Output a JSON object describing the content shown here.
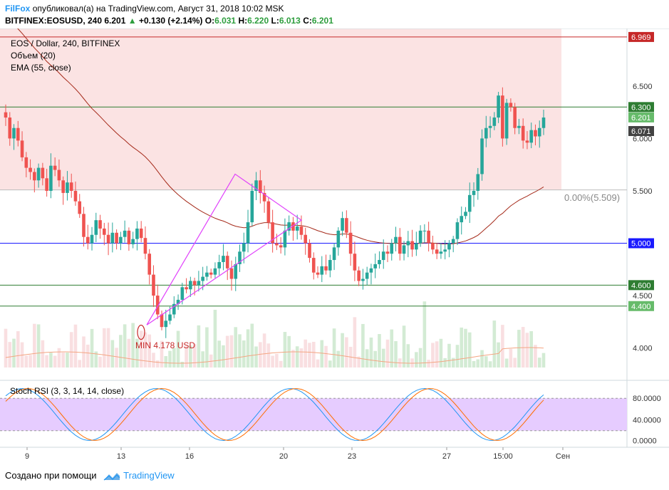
{
  "header": {
    "author": "FilFox",
    "published_text": "опубликовал(а) на TradingView.com, Август 31, 2018 10:02 MSK",
    "symbol": "BITFINEX:EOSUSD, 240",
    "last": "6.201",
    "change_arrow": "▲",
    "change": "+0.130 (+2.14%)",
    "o_label": "O:",
    "o": "6.031",
    "h_label": "H:",
    "h": "6.220",
    "l_label": "L:",
    "l": "6.013",
    "c_label": "C:",
    "c": "6.201"
  },
  "legend": {
    "title": "EOS / Dollar, 240, BITFINEX",
    "volume": "Объем (20)",
    "ema": "EMA (55, close)",
    "stoch": "Stoch RSI (3, 3, 14, 14, close)"
  },
  "annotations": {
    "fib_label": "0.00%(5.509)",
    "min_label": "MIN 4.178 USD"
  },
  "price_tags": [
    {
      "label": "6.969",
      "value": 6.969,
      "bg": "#c62828"
    },
    {
      "label": "6.300",
      "value": 6.3,
      "bg": "#2e7d32"
    },
    {
      "label": "6.201",
      "value": 6.201,
      "bg": "#66bb6a"
    },
    {
      "label": "6.071",
      "value": 6.071,
      "bg": "#424242"
    },
    {
      "label": "5.000",
      "value": 5.0,
      "bg": "#1a1aff"
    },
    {
      "label": "4.600",
      "value": 4.6,
      "bg": "#2e7d32"
    },
    {
      "label": "4.400",
      "value": 4.4,
      "bg": "#66bb6a"
    }
  ],
  "footer": {
    "created_with": "Создано при помощи",
    "brand": "TradingView"
  },
  "colors": {
    "up": "#26a69a",
    "down": "#ef5350",
    "ema": "#a52a1a",
    "triangle": "#e040fb",
    "zone": "#fbe3e3",
    "stoch_band": "#e6ccff",
    "stoch_k": "#2196f3",
    "stoch_d": "#ff6d00"
  },
  "chart_data": {
    "type": "candlestick",
    "symbol": "BITFINEX:EOSUSD",
    "timeframe": "240",
    "ylim": [
      3.8,
      7.05
    ],
    "y_ticks": [
      "6.500",
      "6.000",
      "5.500",
      "5.000",
      "4.500",
      "4.000"
    ],
    "x_ticks": [
      "9",
      "13",
      "16",
      "20",
      "23",
      "27",
      "15:00",
      "Сен"
    ],
    "horizontal_levels": [
      {
        "value": 6.969,
        "color": "#c62828"
      },
      {
        "value": 6.3,
        "color": "#2e7d32"
      },
      {
        "value": 5.509,
        "color": "#bdbdbd"
      },
      {
        "value": 5.0,
        "color": "#1a1aff"
      },
      {
        "value": 4.6,
        "color": "#2e7d32"
      },
      {
        "value": 4.4,
        "color": "#2e7d32"
      }
    ],
    "close": [
      6.2,
      6.0,
      6.1,
      5.98,
      5.82,
      5.72,
      5.68,
      5.6,
      5.72,
      5.62,
      5.5,
      5.74,
      5.7,
      5.6,
      5.48,
      5.58,
      5.5,
      5.4,
      5.28,
      5.06,
      5.0,
      5.08,
      5.22,
      5.14,
      5.08,
      5.0,
      5.1,
      5.0,
      5.06,
      5.12,
      4.99,
      5.04,
      5.14,
      5.05,
      4.9,
      4.7,
      4.5,
      4.32,
      4.2,
      4.26,
      4.32,
      4.42,
      4.46,
      4.58,
      4.56,
      4.64,
      4.6,
      4.64,
      4.68,
      4.72,
      4.7,
      4.76,
      4.82,
      4.88,
      4.76,
      4.66,
      4.8,
      4.92,
      5.0,
      5.2,
      5.5,
      5.6,
      5.48,
      5.4,
      5.2,
      5.0,
      4.98,
      4.96,
      5.12,
      5.2,
      5.12,
      5.16,
      5.08,
      5.0,
      4.86,
      4.72,
      4.7,
      4.78,
      4.74,
      4.84,
      4.96,
      5.12,
      5.24,
      5.1,
      4.9,
      4.74,
      4.64,
      4.66,
      4.72,
      4.76,
      4.8,
      4.84,
      4.92,
      4.9,
      5.0,
      5.06,
      4.9,
      4.98,
      5.02,
      4.94,
      5.0,
      5.12,
      5.12,
      5.0,
      4.94,
      4.9,
      4.92,
      4.94,
      5.0,
      5.04,
      5.2,
      5.26,
      5.3,
      5.46,
      5.5,
      5.66,
      6.0,
      6.1,
      6.12,
      6.2,
      6.41,
      6.0,
      6.34,
      6.3,
      6.1,
      6.12,
      5.98,
      5.96,
      6.08,
      6.02,
      6.1,
      6.2
    ]
  }
}
